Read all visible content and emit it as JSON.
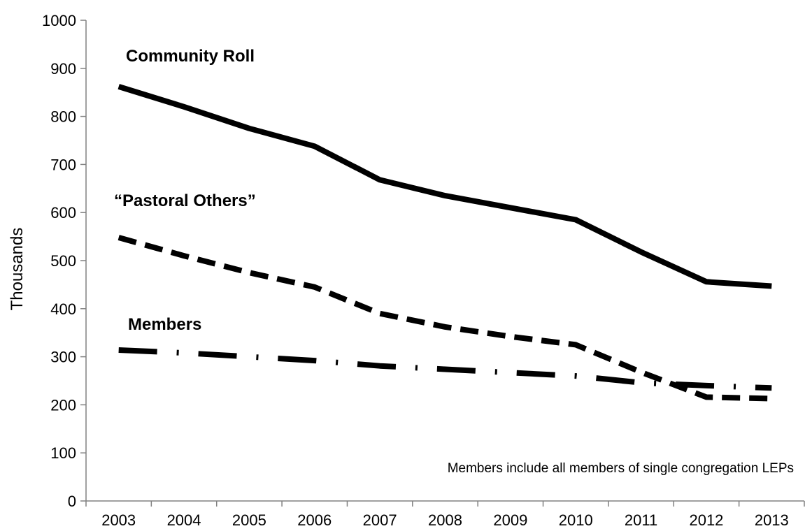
{
  "chart_data": {
    "type": "line",
    "title": "",
    "xlabel": "",
    "ylabel": "Thousands",
    "ylim": [
      0,
      1000
    ],
    "yticks": [
      0,
      100,
      200,
      300,
      400,
      500,
      600,
      700,
      800,
      900,
      1000
    ],
    "x": [
      "2003",
      "2004",
      "2005",
      "2006",
      "2007",
      "2008",
      "2009",
      "2010",
      "2011",
      "2012",
      "2013"
    ],
    "grid": false,
    "legend": "none",
    "series": [
      {
        "name": "Community Roll",
        "style": "solid",
        "values": [
          862,
          820,
          775,
          738,
          668,
          635,
          610,
          585,
          518,
          456,
          447
        ]
      },
      {
        "name": "“Pastoral Others”",
        "style": "dashed",
        "values": [
          548,
          510,
          475,
          445,
          390,
          362,
          342,
          325,
          268,
          216,
          213
        ]
      },
      {
        "name": "Members",
        "style": "dash-dot",
        "values": [
          314,
          308,
          300,
          292,
          281,
          274,
          267,
          260,
          246,
          240,
          235
        ]
      }
    ],
    "annotations": [
      "Members include all members of single congregation LEPs"
    ]
  }
}
